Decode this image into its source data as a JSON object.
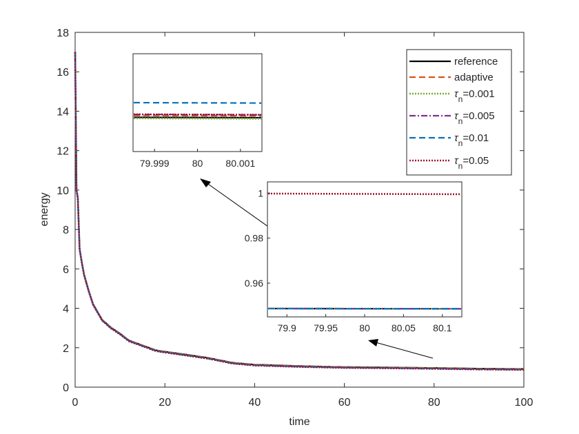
{
  "chart_data": [
    {
      "type": "line",
      "xlabel": "time",
      "ylabel": "energy",
      "xlim": [
        0,
        100
      ],
      "ylim": [
        0,
        18
      ],
      "xticks": [
        0,
        20,
        40,
        60,
        80,
        100
      ],
      "yticks": [
        0,
        2,
        4,
        6,
        8,
        10,
        12,
        14,
        16,
        18
      ],
      "xtick_labels": [
        "0",
        "20",
        "40",
        "60",
        "80",
        "100"
      ],
      "ytick_labels": [
        "0",
        "2",
        "4",
        "6",
        "8",
        "10",
        "12",
        "14",
        "16",
        "18"
      ],
      "grid": false,
      "legend_position": "top-right",
      "curve": {
        "x": [
          0,
          0.3,
          0.6,
          1,
          1.5,
          2,
          3,
          4,
          6,
          8,
          10,
          12,
          15,
          18,
          20,
          25,
          30,
          35,
          40,
          50,
          60,
          70,
          80,
          90,
          100
        ],
        "y": [
          17.0,
          10.0,
          9.6,
          7.0,
          6.3,
          5.7,
          4.9,
          4.2,
          3.4,
          3.0,
          2.7,
          2.35,
          2.1,
          1.85,
          1.78,
          1.62,
          1.45,
          1.22,
          1.12,
          1.05,
          1.0,
          0.98,
          0.95,
          0.92,
          0.9
        ]
      },
      "series": [
        {
          "name": "reference",
          "color": "#000000",
          "style": "solid"
        },
        {
          "name": "adaptive",
          "color": "#D95319",
          "style": "dashed"
        },
        {
          "name": "τ_n=0.001",
          "color": "#77AC30",
          "style": "dotted"
        },
        {
          "name": "τ_n=0.005",
          "color": "#7E2F8E",
          "style": "dashdot"
        },
        {
          "name": "τ_n=0.01",
          "color": "#0072BD",
          "style": "dashed"
        },
        {
          "name": "τ_n=0.05",
          "color": "#A2142F",
          "style": "dotted"
        }
      ]
    },
    {
      "type": "line",
      "panel": "inset-top-left",
      "xlim": [
        79.9985,
        80.0015
      ],
      "xticks": [
        79.999,
        80,
        80.001
      ],
      "xtick_labels": [
        "79.999",
        "80",
        "80.001"
      ],
      "series": [
        {
          "name": "reference",
          "y": 0.9475
        },
        {
          "name": "adaptive",
          "y": 0.9477
        },
        {
          "name": "τ_n=0.001",
          "y": 0.9474
        },
        {
          "name": "τ_n=0.005",
          "y": 0.9478
        },
        {
          "name": "τ_n=0.01",
          "y": 0.949
        },
        {
          "name": "τ_n=0.05",
          "y": 0.9478
        }
      ],
      "ylim": [
        0.944,
        0.954
      ]
    },
    {
      "type": "line",
      "panel": "inset-right",
      "xlim": [
        79.875,
        80.125
      ],
      "ylim": [
        0.945,
        1.005
      ],
      "xticks": [
        79.9,
        79.95,
        80,
        80.05,
        80.1
      ],
      "xtick_labels": [
        "79.9",
        "79.95",
        "80",
        "80.05",
        "80.1"
      ],
      "yticks": [
        0.96,
        0.98,
        1
      ],
      "ytick_labels": [
        "0.96",
        "0.98",
        "1"
      ],
      "series": [
        {
          "name": "reference",
          "y": [
            0.9487,
            0.9486
          ]
        },
        {
          "name": "adaptive",
          "y": [
            0.9487,
            0.9486
          ]
        },
        {
          "name": "τ_n=0.001",
          "y": [
            0.9487,
            0.9486
          ]
        },
        {
          "name": "τ_n=0.005",
          "y": [
            0.9487,
            0.9486
          ]
        },
        {
          "name": "τ_n=0.01",
          "y": [
            0.9487,
            0.9486
          ]
        },
        {
          "name": "τ_n=0.05",
          "y": [
            0.9998,
            0.9995
          ]
        }
      ]
    }
  ],
  "legend": {
    "items": [
      {
        "base": "reference",
        "sub": ""
      },
      {
        "base": "adaptive",
        "sub": ""
      },
      {
        "base": "τ",
        "sub": "n",
        "rest": "=0.001"
      },
      {
        "base": "τ",
        "sub": "n",
        "rest": "=0.005"
      },
      {
        "base": "τ",
        "sub": "n",
        "rest": "=0.01"
      },
      {
        "base": "τ",
        "sub": "n",
        "rest": "=0.05"
      }
    ]
  }
}
